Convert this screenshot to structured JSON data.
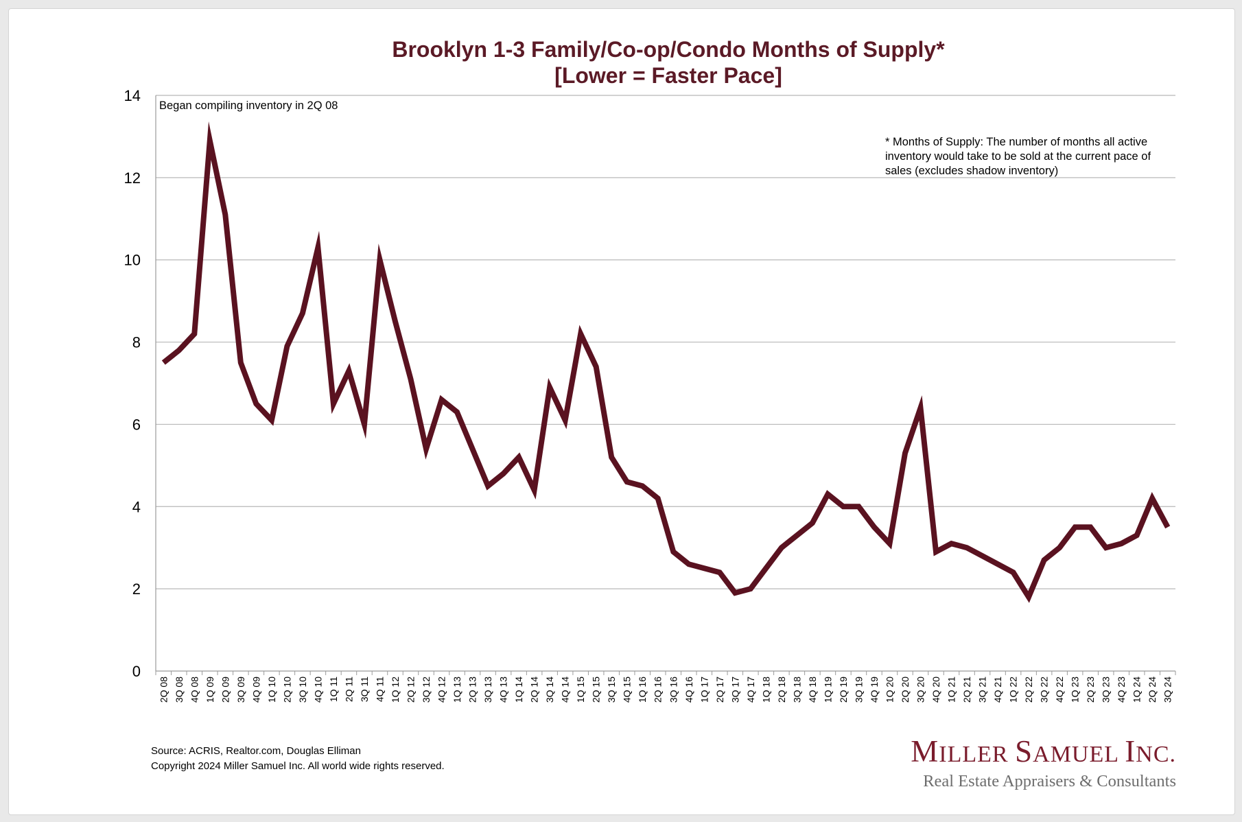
{
  "chart_data": {
    "type": "line",
    "title": "Brooklyn 1-3 Family/Co-op/Condo Months of Supply*",
    "subtitle": "[Lower = Faster Pace]",
    "xlabel": "",
    "ylabel": "",
    "ylim": [
      0,
      14
    ],
    "yticks": [
      0,
      2,
      4,
      6,
      8,
      10,
      12,
      14
    ],
    "grid": true,
    "line_color": "#5a1220",
    "categories": [
      "2Q 08",
      "3Q 08",
      "4Q 08",
      "1Q 09",
      "2Q 09",
      "3Q 09",
      "4Q 09",
      "1Q 10",
      "2Q 10",
      "3Q 10",
      "4Q 10",
      "1Q 11",
      "2Q 11",
      "3Q 11",
      "4Q 11",
      "1Q 12",
      "2Q 12",
      "3Q 12",
      "4Q 12",
      "1Q 13",
      "2Q 13",
      "3Q 13",
      "4Q 13",
      "1Q 14",
      "2Q 14",
      "3Q 14",
      "4Q 14",
      "1Q 15",
      "2Q 15",
      "3Q 15",
      "4Q 15",
      "1Q 16",
      "2Q 16",
      "3Q 16",
      "4Q 16",
      "1Q 17",
      "2Q 17",
      "3Q 17",
      "4Q 17",
      "1Q 18",
      "2Q 18",
      "3Q 18",
      "4Q 18",
      "1Q 19",
      "2Q 19",
      "3Q 19",
      "4Q 19",
      "1Q 20",
      "2Q 20",
      "3Q 20",
      "4Q 20",
      "1Q 21",
      "2Q 21",
      "3Q 21",
      "4Q 21",
      "1Q 22",
      "2Q 22",
      "3Q 22",
      "4Q 22",
      "1Q 23",
      "2Q 23",
      "3Q 23",
      "4Q 23",
      "1Q 24",
      "2Q 24",
      "3Q 24"
    ],
    "values": [
      7.5,
      7.8,
      8.2,
      12.9,
      11.1,
      7.5,
      6.5,
      6.1,
      7.9,
      8.7,
      10.3,
      6.5,
      7.3,
      6.0,
      10.0,
      8.5,
      7.1,
      5.4,
      6.6,
      6.3,
      5.4,
      4.5,
      4.8,
      5.2,
      4.4,
      6.9,
      6.1,
      8.2,
      7.4,
      5.2,
      4.6,
      4.5,
      4.2,
      2.9,
      2.6,
      2.5,
      2.4,
      1.9,
      2.0,
      2.5,
      3.0,
      3.3,
      3.6,
      4.3,
      4.0,
      4.0,
      3.5,
      3.1,
      5.3,
      6.4,
      2.9,
      3.1,
      3.0,
      2.8,
      2.6,
      2.4,
      1.8,
      2.7,
      3.0,
      3.5,
      3.5,
      3.0,
      3.1,
      3.3,
      4.2,
      3.5
    ],
    "annotations": {
      "inventory_note": "Began compiling inventory in 2Q 08",
      "definition_lines": [
        "* Months of Supply: The number of months all active",
        "inventory would take to be sold at the current pace of",
        "sales (excludes shadow inventory)"
      ]
    }
  },
  "footer": {
    "source": "Source: ACRIS, Realtor.com, Douglas Elliman",
    "copyright": "Copyright 2024 Miller Samuel Inc.  All world wide rights reserved."
  },
  "logo": {
    "name_parts": [
      {
        "text": "M",
        "cap": true
      },
      {
        "text": "ILLER ",
        "cap": false
      },
      {
        "text": "S",
        "cap": true
      },
      {
        "text": "AMUEL ",
        "cap": false
      },
      {
        "text": "I",
        "cap": true
      },
      {
        "text": "NC.",
        "cap": false
      }
    ],
    "tagline": "Real Estate Appraisers & Consultants",
    "color": "#7a1c2c"
  }
}
